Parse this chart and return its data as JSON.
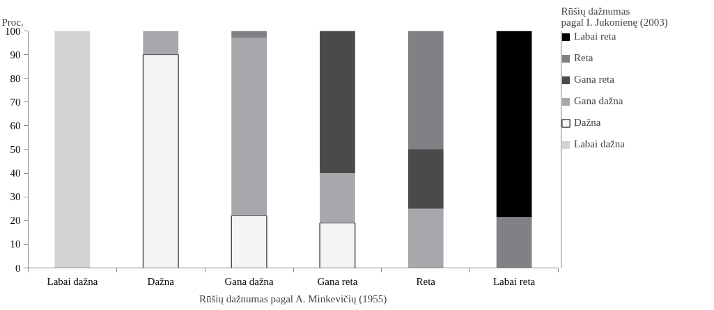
{
  "chart_data": {
    "type": "bar",
    "stacked": true,
    "xlabel": "Rūšių dažnumas pagal A. Minkevičių (1955)",
    "ylabel": "Proc.",
    "legend_title": "Rūšių dažnumas\npagal I. Jukonienę (2003)",
    "categories": [
      "Labai dažna",
      "Dažna",
      "Gana dažna",
      "Gana reta",
      "Reta",
      "Labai reta"
    ],
    "series": [
      {
        "name": "Labai dažna",
        "color": "#d1d2d4",
        "values": [
          100,
          0,
          0,
          0,
          0,
          0
        ]
      },
      {
        "name": "Dažna",
        "color": "#f4f4f4",
        "values": [
          0,
          90,
          22,
          19,
          0,
          0
        ]
      },
      {
        "name": "Gana dažna",
        "color": "#a7a8ab",
        "values": [
          0,
          10,
          75,
          21,
          25,
          0
        ]
      },
      {
        "name": "Gana reta",
        "color": "#4a4a4a",
        "values": [
          0,
          0,
          0,
          60,
          25,
          0
        ]
      },
      {
        "name": "Reta",
        "color": "#808184",
        "values": [
          0,
          0,
          3,
          0,
          50,
          21.5
        ]
      },
      {
        "name": "Labai reta",
        "color": "#000000",
        "values": [
          0,
          0,
          0,
          0,
          0,
          78.5
        ]
      }
    ],
    "ylim": [
      0,
      100
    ],
    "yticks": [
      0,
      10,
      20,
      30,
      40,
      50,
      60,
      70,
      80,
      90,
      100
    ],
    "grid": false,
    "legend": "right"
  }
}
